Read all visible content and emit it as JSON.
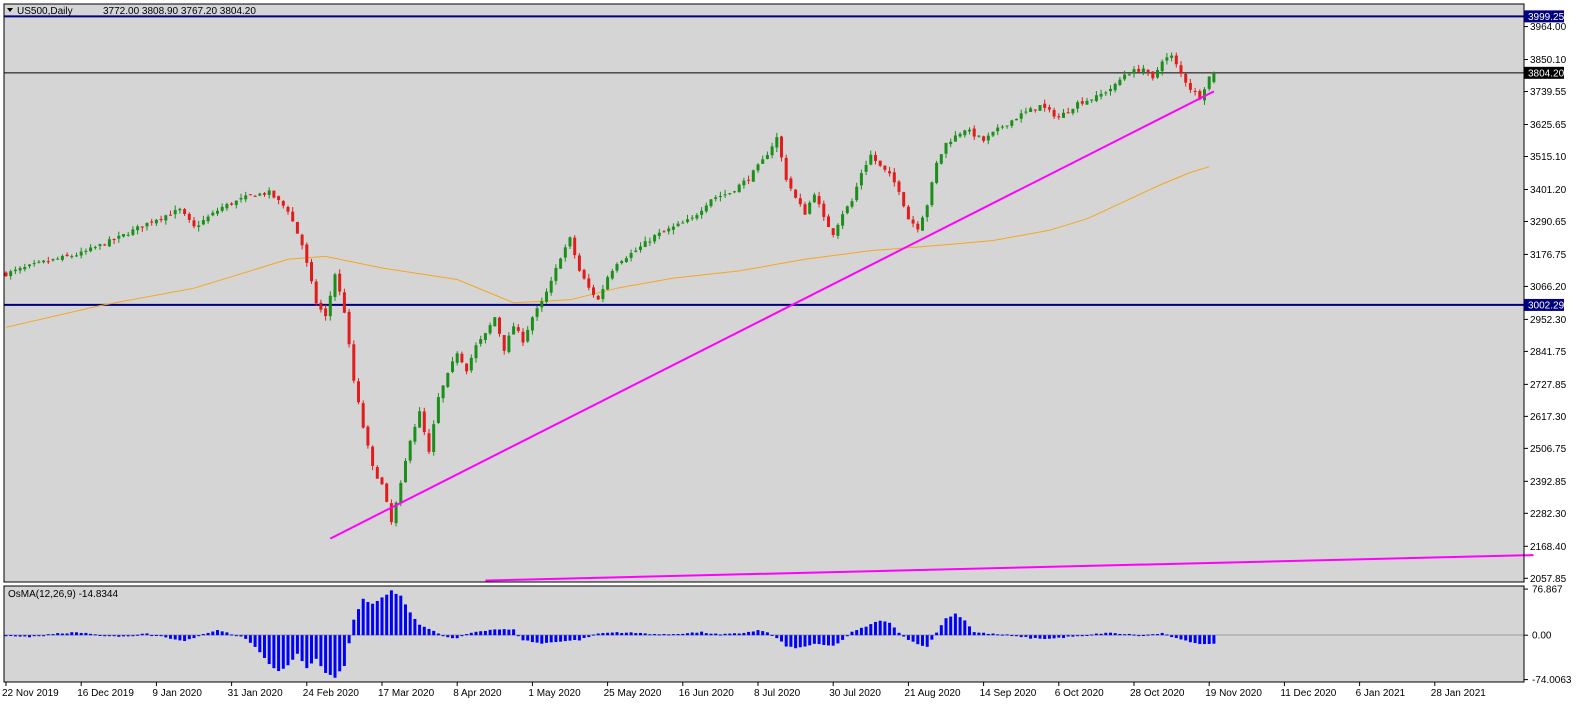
{
  "header": {
    "symbol_label": "US500,Daily",
    "ohlc_label": "3772.00 3808.90 3767.20 3804.20"
  },
  "oscillator": {
    "label": "OsMA(12,26,9) -14.8344",
    "axis_labels": [
      "76.867",
      "0.00",
      "-74.0063"
    ]
  },
  "colors": {
    "plot_bg": "#d5d5d5",
    "bull": "#1a8f1a",
    "bear": "#e21b1b",
    "ma_line": "#f5a623",
    "trendline": "#ff00ff",
    "horizontal_line": "#000080",
    "histogram": "#0000ff",
    "price_tag_bg": "#000080",
    "current_price_tag_bg": "#000000"
  },
  "chart_data": {
    "type": "candlestick",
    "symbol": "US500",
    "timeframe": "Daily",
    "last_bar": {
      "open": 3772.0,
      "high": 3808.9,
      "low": 3767.2,
      "close": 3804.2
    },
    "y_ticks": [
      3964.0,
      3850.1,
      3739.55,
      3625.65,
      3515.1,
      3401.2,
      3290.65,
      3176.75,
      3066.2,
      2952.3,
      2841.75,
      2727.85,
      2617.3,
      2506.75,
      2392.85,
      2282.3,
      2168.4,
      2057.85
    ],
    "ylim": [
      2045,
      4042
    ],
    "x_ticks": [
      "22 Nov 2019",
      "16 Dec 2019",
      "9 Jan 2020",
      "31 Jan 2020",
      "24 Feb 2020",
      "17 Mar 2020",
      "8 Apr 2020",
      "1 May 2020",
      "25 May 2020",
      "16 Jun 2020",
      "8 Jul 2020",
      "30 Jul 2020",
      "21 Aug 2020",
      "14 Sep 2020",
      "6 Oct 2020",
      "28 Oct 2020",
      "19 Nov 2020",
      "11 Dec 2020",
      "6 Jan 2021",
      "28 Jan 2021"
    ],
    "price_path": [
      [
        0,
        3110
      ],
      [
        8,
        3150
      ],
      [
        16,
        3180
      ],
      [
        24,
        3235
      ],
      [
        32,
        3300
      ],
      [
        37,
        3330
      ],
      [
        40,
        3270
      ],
      [
        46,
        3340
      ],
      [
        52,
        3380
      ],
      [
        56,
        3390
      ],
      [
        60,
        3330
      ],
      [
        63,
        3210
      ],
      [
        66,
        3010
      ],
      [
        68,
        2960
      ],
      [
        70,
        3110
      ],
      [
        72,
        2980
      ],
      [
        74,
        2740
      ],
      [
        76,
        2580
      ],
      [
        78,
        2440
      ],
      [
        80,
        2380
      ],
      [
        82,
        2250
      ],
      [
        84,
        2380
      ],
      [
        86,
        2540
      ],
      [
        88,
        2630
      ],
      [
        90,
        2490
      ],
      [
        92,
        2680
      ],
      [
        94,
        2760
      ],
      [
        96,
        2840
      ],
      [
        98,
        2780
      ],
      [
        100,
        2860
      ],
      [
        102,
        2900
      ],
      [
        104,
        2960
      ],
      [
        106,
        2850
      ],
      [
        108,
        2930
      ],
      [
        110,
        2880
      ],
      [
        112,
        2960
      ],
      [
        114,
        3010
      ],
      [
        116,
        3080
      ],
      [
        118,
        3170
      ],
      [
        120,
        3230
      ],
      [
        122,
        3120
      ],
      [
        124,
        3060
      ],
      [
        126,
        3020
      ],
      [
        128,
        3100
      ],
      [
        130,
        3150
      ],
      [
        134,
        3190
      ],
      [
        138,
        3240
      ],
      [
        142,
        3270
      ],
      [
        146,
        3300
      ],
      [
        150,
        3370
      ],
      [
        154,
        3390
      ],
      [
        158,
        3440
      ],
      [
        161,
        3500
      ],
      [
        164,
        3580
      ],
      [
        166,
        3440
      ],
      [
        168,
        3370
      ],
      [
        170,
        3320
      ],
      [
        172,
        3390
      ],
      [
        174,
        3300
      ],
      [
        176,
        3250
      ],
      [
        178,
        3320
      ],
      [
        180,
        3360
      ],
      [
        182,
        3460
      ],
      [
        184,
        3520
      ],
      [
        186,
        3480
      ],
      [
        188,
        3450
      ],
      [
        190,
        3400
      ],
      [
        192,
        3300
      ],
      [
        194,
        3270
      ],
      [
        196,
        3350
      ],
      [
        198,
        3490
      ],
      [
        200,
        3560
      ],
      [
        204,
        3610
      ],
      [
        208,
        3570
      ],
      [
        212,
        3620
      ],
      [
        216,
        3660
      ],
      [
        220,
        3690
      ],
      [
        224,
        3650
      ],
      [
        228,
        3700
      ],
      [
        232,
        3720
      ],
      [
        236,
        3760
      ],
      [
        238,
        3800
      ],
      [
        242,
        3820
      ],
      [
        244,
        3780
      ],
      [
        246,
        3850
      ],
      [
        248,
        3860
      ],
      [
        250,
        3800
      ],
      [
        252,
        3750
      ],
      [
        254,
        3720
      ],
      [
        256,
        3790
      ],
      [
        257,
        3804.2
      ]
    ],
    "moving_average": [
      [
        0,
        2925
      ],
      [
        20,
        3000
      ],
      [
        40,
        3060
      ],
      [
        54,
        3130
      ],
      [
        60,
        3160
      ],
      [
        68,
        3170
      ],
      [
        80,
        3130
      ],
      [
        96,
        3090
      ],
      [
        108,
        3010
      ],
      [
        120,
        3020
      ],
      [
        130,
        3060
      ],
      [
        142,
        3095
      ],
      [
        156,
        3120
      ],
      [
        170,
        3160
      ],
      [
        184,
        3190
      ],
      [
        200,
        3210
      ],
      [
        210,
        3225
      ],
      [
        222,
        3260
      ],
      [
        230,
        3300
      ],
      [
        238,
        3360
      ],
      [
        246,
        3420
      ],
      [
        252,
        3460
      ],
      [
        256,
        3480
      ]
    ],
    "horizontal_lines": [
      {
        "price": 3999.25,
        "label": "3999.25"
      },
      {
        "price": 3002.29,
        "label": "3002.29"
      }
    ],
    "current_price": {
      "price": 3804.2,
      "label": "3804.20"
    },
    "trendlines": [
      {
        "from": [
          69,
          2195
        ],
        "to": [
          257,
          3740
        ]
      },
      {
        "from": [
          102,
          2050
        ],
        "to": [
          325,
          2138
        ]
      }
    ],
    "osma_ylim": [
      -78,
      82
    ],
    "osma_path": [
      [
        0,
        0
      ],
      [
        5,
        -3
      ],
      [
        10,
        2
      ],
      [
        15,
        5
      ],
      [
        20,
        0
      ],
      [
        25,
        -2
      ],
      [
        30,
        3
      ],
      [
        35,
        -6
      ],
      [
        38,
        -10
      ],
      [
        42,
        1
      ],
      [
        45,
        8
      ],
      [
        48,
        2
      ],
      [
        50,
        -2
      ],
      [
        52,
        -12
      ],
      [
        54,
        -28
      ],
      [
        56,
        -48
      ],
      [
        58,
        -60
      ],
      [
        60,
        -50
      ],
      [
        62,
        -30
      ],
      [
        64,
        -55
      ],
      [
        66,
        -40
      ],
      [
        68,
        -62
      ],
      [
        70,
        -70
      ],
      [
        72,
        -52
      ],
      [
        74,
        25
      ],
      [
        76,
        60
      ],
      [
        78,
        52
      ],
      [
        80,
        62
      ],
      [
        82,
        74
      ],
      [
        84,
        65
      ],
      [
        86,
        38
      ],
      [
        88,
        18
      ],
      [
        90,
        10
      ],
      [
        92,
        3
      ],
      [
        94,
        -4
      ],
      [
        96,
        -6
      ],
      [
        98,
        2
      ],
      [
        100,
        6
      ],
      [
        104,
        10
      ],
      [
        108,
        9
      ],
      [
        110,
        -8
      ],
      [
        114,
        -14
      ],
      [
        118,
        -10
      ],
      [
        122,
        -8
      ],
      [
        126,
        3
      ],
      [
        130,
        5
      ],
      [
        136,
        3
      ],
      [
        140,
        1
      ],
      [
        144,
        3
      ],
      [
        148,
        5
      ],
      [
        152,
        1
      ],
      [
        156,
        3
      ],
      [
        160,
        8
      ],
      [
        162,
        5
      ],
      [
        164,
        -5
      ],
      [
        166,
        -18
      ],
      [
        168,
        -22
      ],
      [
        172,
        -15
      ],
      [
        176,
        -18
      ],
      [
        178,
        -8
      ],
      [
        180,
        5
      ],
      [
        184,
        18
      ],
      [
        186,
        25
      ],
      [
        188,
        20
      ],
      [
        190,
        5
      ],
      [
        192,
        -8
      ],
      [
        194,
        -14
      ],
      [
        196,
        -20
      ],
      [
        198,
        5
      ],
      [
        200,
        28
      ],
      [
        202,
        36
      ],
      [
        204,
        25
      ],
      [
        206,
        5
      ],
      [
        210,
        2
      ],
      [
        214,
        0
      ],
      [
        218,
        -5
      ],
      [
        222,
        -6
      ],
      [
        226,
        -3
      ],
      [
        230,
        0
      ],
      [
        234,
        4
      ],
      [
        238,
        2
      ],
      [
        242,
        0
      ],
      [
        246,
        3
      ],
      [
        250,
        -8
      ],
      [
        254,
        -14
      ],
      [
        256,
        -15
      ]
    ]
  }
}
